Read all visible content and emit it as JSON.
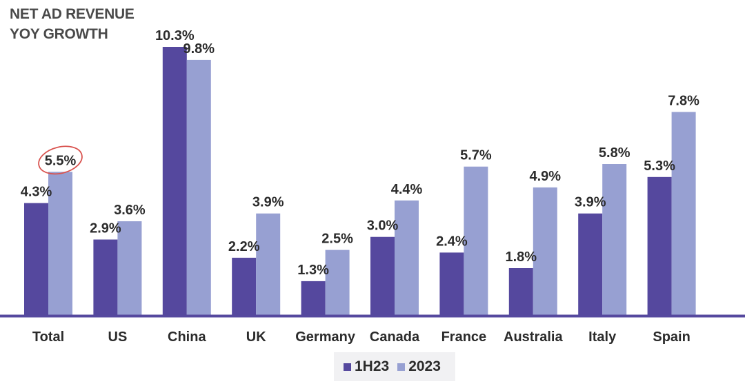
{
  "chart_data": {
    "type": "bar",
    "title_lines": [
      "NET AD REVENUE",
      "YOY GROWTH"
    ],
    "categories": [
      "Total",
      "US",
      "China",
      "UK",
      "Germany",
      "Canada",
      "France",
      "Australia",
      "Italy",
      "Spain"
    ],
    "series": [
      {
        "name": "1H23",
        "color": "#55489e",
        "values": [
          4.3,
          2.9,
          10.3,
          2.2,
          1.3,
          3.0,
          2.4,
          1.8,
          3.9,
          5.3
        ],
        "labels": [
          "4.3%",
          "2.9%",
          "10.3%",
          "2.2%",
          "1.3%",
          "3.0%",
          "2.4%",
          "1.8%",
          "3.9%",
          "5.3%"
        ]
      },
      {
        "name": "2023",
        "color": "#97a0d2",
        "values": [
          5.5,
          3.6,
          9.8,
          3.9,
          2.5,
          4.4,
          5.7,
          4.9,
          5.8,
          7.8
        ],
        "labels": [
          "5.5%",
          "3.6%",
          "9.8%",
          "3.9%",
          "2.5%",
          "4.4%",
          "5.7%",
          "4.9%",
          "5.8%",
          "7.8%"
        ]
      }
    ],
    "ylim": [
      0,
      10.3
    ],
    "xlabel": "",
    "ylabel": "",
    "grid": false,
    "legend_position": "bottom-center",
    "baseline_color": "#55489e",
    "highlight": {
      "category": "Total",
      "series": "2023",
      "shape": "circle",
      "color": "#d9534f"
    }
  }
}
